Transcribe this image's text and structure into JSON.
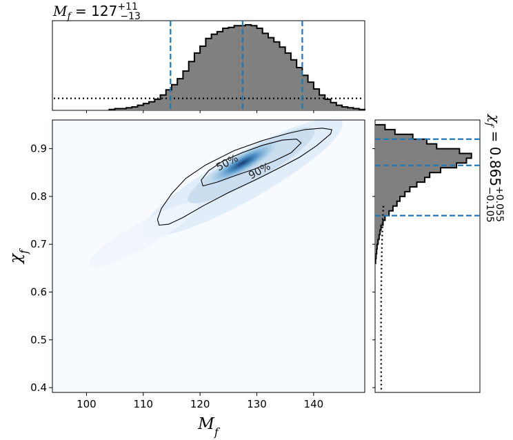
{
  "chart_data": [
    {
      "type": "heatmap",
      "panel": "joint",
      "xlabel_symbol": "M",
      "xlabel_sub": "f",
      "ylabel_symbol": "χ",
      "ylabel_sub": "f",
      "xlim": [
        94,
        149
      ],
      "ylim": [
        0.39,
        0.96
      ],
      "xticks": [
        100,
        110,
        120,
        130,
        140
      ],
      "yticks": [
        0.4,
        0.5,
        0.6,
        0.7,
        0.8,
        0.9
      ],
      "colormap": "Blues",
      "peak": {
        "x": 127.5,
        "y": 0.87
      },
      "contour_labels": [
        "50%",
        "90%"
      ],
      "contour_90": [
        [
          112.8,
          0.74
        ],
        [
          114.5,
          0.742
        ],
        [
          117,
          0.756
        ],
        [
          120.5,
          0.78
        ],
        [
          125,
          0.808
        ],
        [
          130,
          0.836
        ],
        [
          134,
          0.86
        ],
        [
          137.5,
          0.882
        ],
        [
          140.5,
          0.906
        ],
        [
          143,
          0.931
        ],
        [
          143.2,
          0.94
        ],
        [
          141.5,
          0.943
        ],
        [
          138.5,
          0.94
        ],
        [
          135.5,
          0.932
        ],
        [
          131,
          0.917
        ],
        [
          126,
          0.896
        ],
        [
          121,
          0.866
        ],
        [
          117.5,
          0.838
        ],
        [
          115,
          0.806
        ],
        [
          113.2,
          0.775
        ],
        [
          112.5,
          0.752
        ]
      ],
      "contour_50": [
        [
          120.5,
          0.822
        ],
        [
          123,
          0.83
        ],
        [
          126,
          0.843
        ],
        [
          129.5,
          0.857
        ],
        [
          133,
          0.874
        ],
        [
          136,
          0.891
        ],
        [
          137.8,
          0.912
        ],
        [
          137,
          0.92
        ],
        [
          134.5,
          0.918
        ],
        [
          131,
          0.907
        ],
        [
          127.5,
          0.892
        ],
        [
          124,
          0.874
        ],
        [
          121.5,
          0.854
        ],
        [
          120.2,
          0.834
        ]
      ]
    },
    {
      "type": "histogram",
      "panel": "top-marginal",
      "orientation": "vertical",
      "bins_x": [
        104,
        105,
        106,
        107,
        108,
        109,
        110,
        111,
        112,
        113,
        114,
        115,
        116,
        117,
        118,
        119,
        120,
        121,
        122,
        123,
        124,
        125,
        126,
        127,
        128,
        129,
        130,
        131,
        132,
        133,
        134,
        135,
        136,
        137,
        138,
        139,
        140,
        141,
        142,
        143,
        144,
        145,
        146,
        147,
        148
      ],
      "values": [
        0.01,
        0.02,
        0.02,
        0.03,
        0.04,
        0.06,
        0.08,
        0.1,
        0.13,
        0.18,
        0.24,
        0.3,
        0.37,
        0.46,
        0.57,
        0.67,
        0.75,
        0.84,
        0.89,
        0.92,
        0.96,
        0.97,
        0.99,
        0.99,
        1.0,
        0.99,
        0.96,
        0.9,
        0.85,
        0.8,
        0.74,
        0.67,
        0.59,
        0.5,
        0.41,
        0.33,
        0.25,
        0.18,
        0.13,
        0.09,
        0.06,
        0.04,
        0.03,
        0.02,
        0.01
      ],
      "prior_level": 0.14,
      "quantile_lines": [
        114.8,
        127.5,
        138
      ],
      "annotation": {
        "symbol": "M",
        "sub": "f",
        "eq": " = 127",
        "sup": "+11",
        "sub2": "−13"
      }
    },
    {
      "type": "histogram",
      "panel": "right-marginal",
      "orientation": "horizontal",
      "bins_y": [
        0.94,
        0.93,
        0.92,
        0.91,
        0.9,
        0.89,
        0.88,
        0.87,
        0.86,
        0.85,
        0.84,
        0.83,
        0.82,
        0.81,
        0.8,
        0.79,
        0.78,
        0.77,
        0.76,
        0.75,
        0.74,
        0.73,
        0.72,
        0.71,
        0.7,
        0.69,
        0.68,
        0.67,
        0.66
      ],
      "values": [
        0.1,
        0.2,
        0.38,
        0.52,
        0.62,
        0.85,
        0.97,
        0.92,
        0.82,
        0.66,
        0.55,
        0.5,
        0.42,
        0.35,
        0.3,
        0.25,
        0.22,
        0.18,
        0.14,
        0.1,
        0.08,
        0.06,
        0.05,
        0.04,
        0.03,
        0.02,
        0.015,
        0.01,
        0.005
      ],
      "quantile_lines": [
        0.92,
        0.865,
        0.76
      ],
      "annotation": {
        "symbol": "χ",
        "sub": "f",
        "eq": " = 0.865",
        "sup": "+0.055",
        "sub2": "−0.105"
      }
    }
  ]
}
